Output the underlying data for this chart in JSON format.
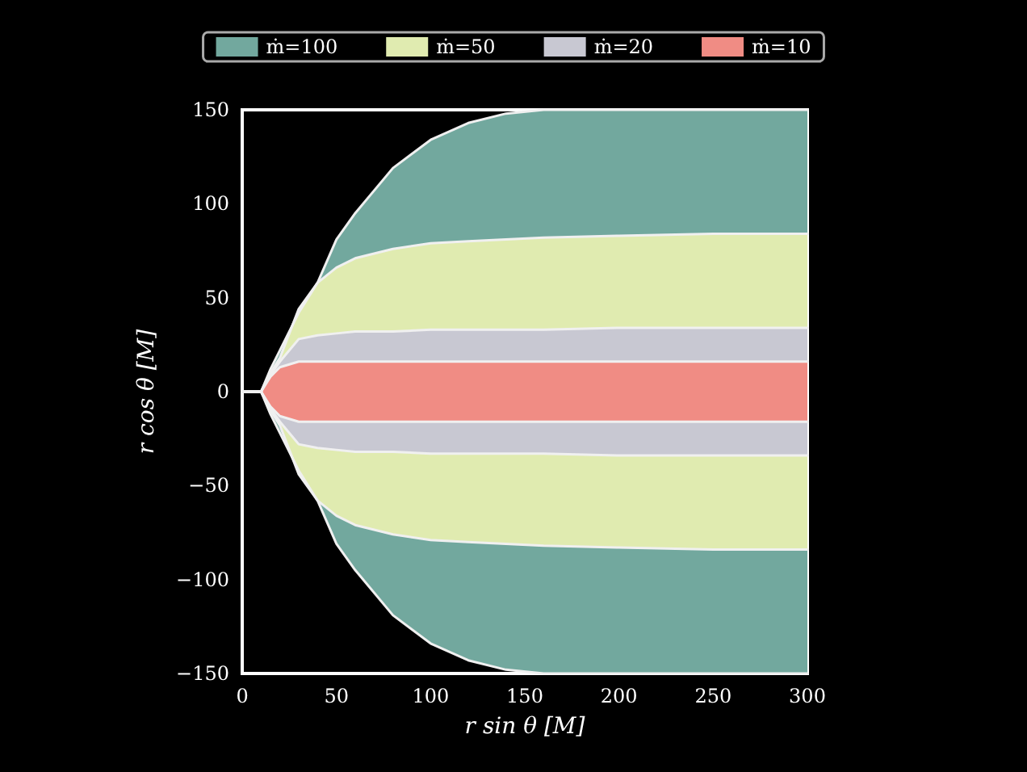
{
  "chart_data": {
    "type": "area",
    "xlabel": "r sin θ [M]",
    "ylabel": "r cos θ [M]",
    "legend": "top",
    "grid": false,
    "xlim": [
      0,
      300
    ],
    "xticks": [
      0,
      50,
      100,
      150,
      200,
      250,
      300
    ],
    "ylim": [
      -150,
      150
    ],
    "yticks": [
      {
        "value": -150,
        "label": "−150"
      },
      {
        "value": -100,
        "label": "−100"
      },
      {
        "value": -50,
        "label": "−50"
      },
      0,
      50,
      100,
      150
    ],
    "x": [
      0,
      10,
      15,
      20,
      30,
      40,
      50,
      60,
      80,
      100,
      120,
      140,
      160,
      200,
      250,
      300
    ],
    "series": [
      {
        "name": "ṁ=100",
        "color": "#72a89e",
        "values": [
          0,
          0,
          12,
          22,
          42,
          58,
          81,
          95,
          119,
          134,
          143,
          148,
          150,
          150,
          150,
          150
        ]
      },
      {
        "color": "#72a89e",
        "values": [
          0,
          0,
          -12,
          -22,
          -42,
          -58,
          -81,
          -95,
          -119,
          -134,
          -143,
          -148,
          -150,
          -150,
          -150,
          -150
        ]
      },
      {
        "name": "ṁ=50",
        "color": "#e0ebb0",
        "values": [
          0,
          0,
          10,
          18,
          44,
          58,
          66,
          71,
          76,
          79,
          80,
          81,
          82,
          83,
          84,
          84
        ]
      },
      {
        "color": "#e0ebb0",
        "values": [
          0,
          0,
          -10,
          -18,
          -44,
          -58,
          -66,
          -71,
          -76,
          -79,
          -80,
          -81,
          -82,
          -83,
          -84,
          -84
        ]
      },
      {
        "name": "ṁ=20",
        "color": "#c8c8d2",
        "values": [
          0,
          0,
          9,
          16,
          28,
          30,
          31,
          32,
          32,
          33,
          33,
          33,
          33,
          34,
          34,
          34
        ]
      },
      {
        "color": "#c8c8d2",
        "values": [
          0,
          0,
          -9,
          -16,
          -28,
          -30,
          -31,
          -32,
          -32,
          -33,
          -33,
          -33,
          -33,
          -34,
          -34,
          -34
        ]
      },
      {
        "name": "ṁ=10",
        "color": "#f08c84",
        "values": [
          0,
          0,
          8,
          13,
          16,
          16,
          16,
          16,
          16,
          16,
          16,
          16,
          16,
          16,
          16,
          16
        ]
      },
      {
        "color": "#f08c84",
        "values": [
          0,
          0,
          -8,
          -13,
          -16,
          -16,
          -16,
          -16,
          -16,
          -16,
          -16,
          -16,
          -16,
          -16,
          -16,
          -16
        ]
      }
    ]
  }
}
